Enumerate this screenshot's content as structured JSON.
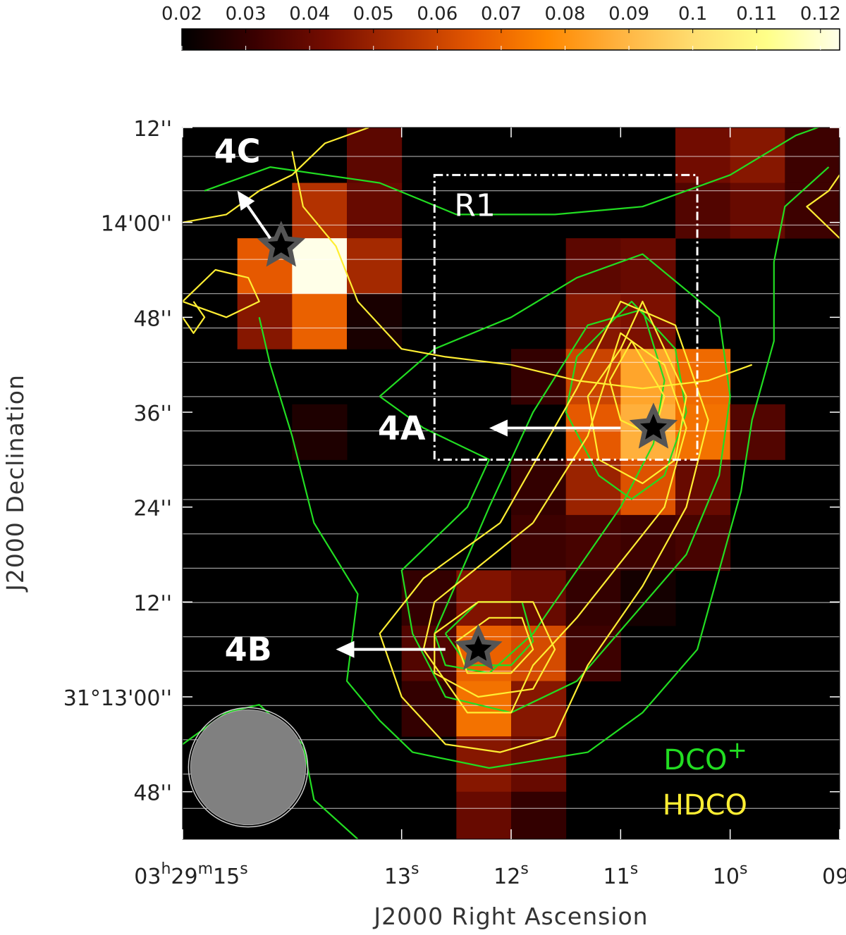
{
  "chart_data": {
    "type": "heatmap",
    "title": "",
    "xlabel": "J2000 Right Ascension",
    "ylabel": "J2000 Declination",
    "x_ticks": [
      {
        "ra_s": 15,
        "parts": [
          [
            "03",
            "h",
            "29",
            "m",
            "15",
            "s"
          ]
        ]
      },
      {
        "ra_s": 13,
        "parts": [
          [
            "13",
            "s"
          ]
        ]
      },
      {
        "ra_s": 12,
        "parts": [
          [
            "12",
            "s"
          ]
        ]
      },
      {
        "ra_s": 11,
        "parts": [
          [
            "11",
            "s"
          ]
        ]
      },
      {
        "ra_s": 10,
        "parts": [
          [
            "10",
            "s"
          ]
        ]
      },
      {
        "ra_s": 9,
        "parts": [
          [
            "09",
            "s"
          ]
        ]
      }
    ],
    "y_ticks": [
      {
        "dec_arcsec": 72,
        "label": "12''"
      },
      {
        "dec_arcsec": 60,
        "label": "14'00''"
      },
      {
        "dec_arcsec": 48,
        "label": "48''"
      },
      {
        "dec_arcsec": 36,
        "label": "36''"
      },
      {
        "dec_arcsec": 24,
        "label": "24''"
      },
      {
        "dec_arcsec": 12,
        "label": "12''"
      },
      {
        "dec_arcsec": 0,
        "label": "31°13'00''"
      },
      {
        "dec_arcsec": -12,
        "label": "48''"
      }
    ],
    "x_range_ra_s": [
      15.0,
      9.0
    ],
    "y_range_dec_arcsec": [
      72,
      -18
    ],
    "colorbar": {
      "min": 0.02,
      "max": 0.123,
      "ticks": [
        0.02,
        0.03,
        0.04,
        0.05,
        0.06,
        0.07,
        0.08,
        0.09,
        0.1,
        0.11,
        0.12
      ],
      "tick_labels": [
        "0.02",
        "0.03",
        "0.04",
        "0.05",
        "0.06",
        "0.07",
        "0.08",
        "0.09",
        "0.1",
        "0.11",
        "0.12"
      ],
      "colors": [
        "#000000",
        "#3a0000",
        "#760d00",
        "#b03000",
        "#e55800",
        "#ff8800",
        "#ffb340",
        "#ffdd70",
        "#ffff88",
        "#ffffe8"
      ]
    },
    "pixel_grid": {
      "ra0_s": 15.0,
      "dec0_arcsec": 72,
      "cell_ra_s": 0.5,
      "cell_dec_arcsec": 7.0,
      "cols": 12,
      "rows": 13,
      "cells": [
        [
          3,
          0,
          0.038
        ],
        [
          9,
          0,
          0.042
        ],
        [
          10,
          0,
          0.046
        ],
        [
          11,
          0,
          0.032
        ],
        [
          2,
          1,
          0.055
        ],
        [
          3,
          1,
          0.04
        ],
        [
          9,
          1,
          0.036
        ],
        [
          10,
          1,
          0.04
        ],
        [
          11,
          1,
          0.032
        ],
        [
          1,
          2,
          0.066
        ],
        [
          2,
          2,
          0.123
        ],
        [
          3,
          2,
          0.052
        ],
        [
          7,
          2,
          0.038
        ],
        [
          8,
          2,
          0.04
        ],
        [
          1,
          3,
          0.046
        ],
        [
          2,
          3,
          0.068
        ],
        [
          3,
          3,
          0.025
        ],
        [
          7,
          3,
          0.046
        ],
        [
          8,
          3,
          0.044
        ],
        [
          6,
          4,
          0.03
        ],
        [
          7,
          4,
          0.06
        ],
        [
          8,
          4,
          0.085
        ],
        [
          9,
          4,
          0.07
        ],
        [
          2,
          5,
          0.026
        ],
        [
          7,
          5,
          0.066
        ],
        [
          8,
          5,
          0.088
        ],
        [
          9,
          5,
          0.072
        ],
        [
          10,
          5,
          0.036
        ],
        [
          6,
          6,
          0.03
        ],
        [
          7,
          6,
          0.05
        ],
        [
          8,
          6,
          0.064
        ],
        [
          9,
          6,
          0.04
        ],
        [
          6,
          7,
          0.032
        ],
        [
          7,
          7,
          0.034
        ],
        [
          8,
          7,
          0.032
        ],
        [
          9,
          7,
          0.034
        ],
        [
          4,
          8,
          0.03
        ],
        [
          5,
          8,
          0.045
        ],
        [
          6,
          8,
          0.04
        ],
        [
          7,
          8,
          0.03
        ],
        [
          8,
          8,
          0.024
        ],
        [
          4,
          9,
          0.036
        ],
        [
          5,
          9,
          0.068
        ],
        [
          6,
          9,
          0.062
        ],
        [
          7,
          9,
          0.032
        ],
        [
          4,
          10,
          0.03
        ],
        [
          5,
          10,
          0.072
        ],
        [
          6,
          10,
          0.046
        ],
        [
          5,
          11,
          0.046
        ],
        [
          6,
          11,
          0.04
        ],
        [
          5,
          12,
          0.04
        ],
        [
          6,
          12,
          0.03
        ]
      ]
    },
    "contours": [
      {
        "name": "DCO+",
        "color": "#22dd22",
        "paths": [
          [
            [
              14.8,
              64
            ],
            [
              14.2,
              67
            ],
            [
              13.2,
              65
            ],
            [
              12.5,
              61
            ],
            [
              11.6,
              61
            ],
            [
              10.8,
              62
            ],
            [
              10.0,
              66
            ],
            [
              9.4,
              71
            ],
            [
              9.0,
              73
            ]
          ],
          [
            [
              14.3,
              48
            ],
            [
              14.2,
              42
            ],
            [
              14.0,
              33
            ],
            [
              13.8,
              22
            ],
            [
              13.4,
              13
            ],
            [
              13.5,
              2
            ],
            [
              13.2,
              -3
            ],
            [
              12.9,
              -7
            ],
            [
              12.2,
              -9
            ],
            [
              11.3,
              -7
            ],
            [
              10.8,
              -2
            ],
            [
              10.3,
              6
            ],
            [
              10.1,
              16
            ],
            [
              9.9,
              26
            ],
            [
              9.8,
              35
            ],
            [
              9.6,
              45
            ],
            [
              9.6,
              55
            ],
            [
              9.5,
              62
            ],
            [
              9.1,
              67
            ]
          ],
          [
            [
              13.2,
              38
            ],
            [
              12.7,
              44
            ],
            [
              12.0,
              48
            ],
            [
              11.4,
              53
            ],
            [
              10.8,
              56
            ],
            [
              10.1,
              48
            ],
            [
              10.0,
              38
            ],
            [
              10.1,
              28
            ],
            [
              10.4,
              18
            ],
            [
              10.9,
              10
            ],
            [
              11.4,
              2
            ],
            [
              12.0,
              -2
            ],
            [
              12.6,
              0
            ],
            [
              12.9,
              8
            ],
            [
              13.0,
              16
            ],
            [
              12.4,
              24
            ],
            [
              12.2,
              30
            ],
            [
              12.8,
              34
            ],
            [
              13.2,
              38
            ]
          ],
          [
            [
              12.7,
              8
            ],
            [
              12.2,
              24
            ],
            [
              11.8,
              36
            ],
            [
              11.3,
              47
            ],
            [
              10.8,
              49
            ],
            [
              10.6,
              40
            ],
            [
              10.7,
              32
            ],
            [
              11.0,
              24
            ],
            [
              11.4,
              16
            ],
            [
              11.8,
              8
            ],
            [
              12.2,
              3
            ],
            [
              12.6,
              4
            ],
            [
              12.7,
              8
            ]
          ],
          [
            [
              11.4,
              43
            ],
            [
              10.9,
              50
            ],
            [
              10.5,
              44
            ],
            [
              10.4,
              36
            ],
            [
              10.6,
              28
            ],
            [
              10.9,
              25
            ],
            [
              11.2,
              28
            ],
            [
              11.5,
              36
            ],
            [
              11.4,
              43
            ]
          ],
          [
            [
              12.6,
              8
            ],
            [
              12.3,
              12
            ],
            [
              11.9,
              12
            ],
            [
              11.8,
              7
            ],
            [
              12.0,
              4
            ],
            [
              12.4,
              4
            ],
            [
              12.6,
              8
            ]
          ],
          [
            [
              15.0,
              -6
            ],
            [
              14.6,
              -2
            ],
            [
              14.3,
              -1
            ],
            [
              13.9,
              -6
            ],
            [
              13.8,
              -13
            ],
            [
              13.4,
              -18
            ]
          ],
          [
            [
              14.75,
              -13.3
            ],
            [
              14.6,
              -13.8
            ],
            [
              14.68,
              -14.1
            ],
            [
              14.75,
              -13.3
            ]
          ]
        ]
      },
      {
        "name": "HDCO",
        "color": "#ffee33",
        "paths": [
          [
            [
              14.0,
              69
            ],
            [
              13.9,
              62
            ],
            [
              13.6,
              57
            ],
            [
              13.4,
              50
            ],
            [
              13.0,
              44
            ],
            [
              12.6,
              43
            ],
            [
              12.0,
              42
            ],
            [
              11.4,
              40
            ],
            [
              10.8,
              39
            ],
            [
              10.2,
              40
            ],
            [
              9.8,
              42
            ]
          ],
          [
            [
              15.0,
              60
            ],
            [
              14.6,
              61
            ],
            [
              14.3,
              64
            ],
            [
              14.0,
              66
            ],
            [
              13.7,
              70
            ],
            [
              13.3,
              72
            ]
          ],
          [
            [
              15.0,
              50
            ],
            [
              14.7,
              54
            ],
            [
              14.4,
              53
            ],
            [
              14.3,
              50
            ],
            [
              14.6,
              48
            ],
            [
              15.0,
              50
            ]
          ],
          [
            [
              14.9,
              50
            ],
            [
              14.8,
              48
            ],
            [
              14.9,
              46
            ],
            [
              15.0,
              48
            ]
          ],
          [
            [
              12.1,
              22
            ],
            [
              11.4,
              39
            ],
            [
              11.0,
              50
            ],
            [
              10.5,
              47
            ],
            [
              10.2,
              35
            ],
            [
              10.4,
              24
            ],
            [
              10.8,
              14
            ],
            [
              11.3,
              4
            ],
            [
              11.6,
              -5
            ],
            [
              12.1,
              -7
            ],
            [
              12.6,
              -6
            ],
            [
              13.0,
              0
            ],
            [
              13.2,
              8
            ],
            [
              12.8,
              15
            ],
            [
              12.1,
              22
            ]
          ],
          [
            [
              11.8,
              22
            ],
            [
              11.3,
              33
            ],
            [
              11.0,
              46
            ],
            [
              10.6,
              42
            ],
            [
              10.4,
              34
            ],
            [
              10.6,
              24
            ],
            [
              11.0,
              17
            ],
            [
              11.4,
              10
            ],
            [
              11.8,
              4
            ],
            [
              12.0,
              -2
            ],
            [
              12.4,
              -2
            ],
            [
              12.8,
              6
            ],
            [
              12.7,
              12
            ],
            [
              11.8,
              22
            ]
          ],
          [
            [
              11.0,
              44
            ],
            [
              10.8,
              50
            ],
            [
              10.4,
              38
            ],
            [
              10.5,
              30
            ],
            [
              10.8,
              27
            ],
            [
              11.2,
              30
            ],
            [
              11.3,
              38
            ],
            [
              11.0,
              44
            ]
          ],
          [
            [
              11.1,
              40
            ],
            [
              10.9,
              45
            ],
            [
              10.6,
              38
            ],
            [
              10.7,
              33
            ],
            [
              11.0,
              35
            ],
            [
              11.1,
              40
            ]
          ],
          [
            [
              12.7,
              8
            ],
            [
              12.3,
              12
            ],
            [
              11.8,
              12
            ],
            [
              11.6,
              6
            ],
            [
              11.8,
              1
            ],
            [
              12.3,
              0
            ],
            [
              12.7,
              3
            ],
            [
              12.7,
              8
            ]
          ],
          [
            [
              12.5,
              7
            ],
            [
              12.2,
              10
            ],
            [
              11.9,
              10
            ],
            [
              11.8,
              6
            ],
            [
              12.0,
              3
            ],
            [
              12.4,
              3
            ],
            [
              12.5,
              7
            ]
          ],
          [
            [
              9.0,
              58
            ],
            [
              9.3,
              62
            ],
            [
              9.1,
              64
            ],
            [
              9.0,
              66
            ]
          ]
        ]
      }
    ],
    "stars": [
      {
        "ra_s": 14.1,
        "dec_arcsec": 57
      },
      {
        "ra_s": 10.7,
        "dec_arcsec": 34
      },
      {
        "ra_s": 12.3,
        "dec_arcsec": 6
      }
    ],
    "annotations": [
      {
        "text": "4C",
        "arrow_from": [
          14.2,
          58
        ],
        "arrow_to": [
          14.5,
          64
        ],
        "label_at": [
          14.5,
          69
        ]
      },
      {
        "text": "4A",
        "arrow_from": [
          11.0,
          34
        ],
        "arrow_to": [
          12.2,
          34
        ],
        "label_at": [
          13.0,
          34
        ]
      },
      {
        "text": "4B",
        "arrow_from": [
          12.6,
          6
        ],
        "arrow_to": [
          13.6,
          6
        ],
        "label_at": [
          14.4,
          6
        ]
      }
    ],
    "region": {
      "label": "R1",
      "ra_s": [
        12.7,
        10.3
      ],
      "dec_arcsec": [
        66,
        30
      ]
    },
    "beam": {
      "ra_s": 14.6,
      "dec_arcsec": -10,
      "diameter_arcsec": 14
    },
    "legend": {
      "position": "bottom-right",
      "entries": [
        {
          "name": "DCO",
          "sup": "+",
          "color": "#22dd22"
        },
        {
          "name": "HDCO",
          "sup": "",
          "color": "#ffee33"
        }
      ]
    }
  }
}
